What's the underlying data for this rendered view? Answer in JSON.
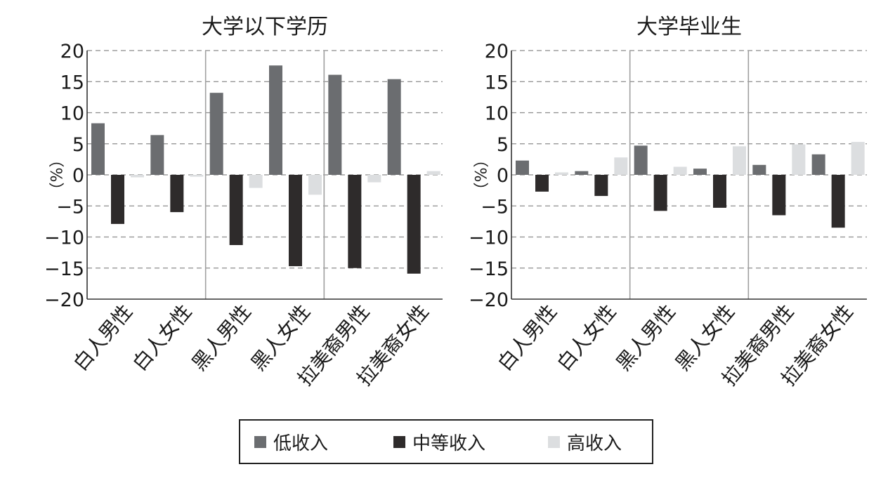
{
  "chart_data": [
    {
      "type": "bar",
      "title": "大学以下学历",
      "ylabel": "（%）",
      "ylim": [
        -20,
        20
      ],
      "yticks": [
        20,
        15,
        10,
        5,
        0,
        -5,
        -10,
        -15,
        -20
      ],
      "ytick_labels": [
        "20",
        "15",
        "10",
        "5",
        "0",
        "−5",
        "−10",
        "−15",
        "−20"
      ],
      "grid": "horizontal-dashed",
      "categories": [
        "白人男性",
        "白人女性",
        "黑人男性",
        "黑人女性",
        "拉美裔男性",
        "拉美裔女性"
      ],
      "series": [
        {
          "name": "低收入",
          "values": [
            8.3,
            6.4,
            13.2,
            17.6,
            16.1,
            15.4
          ]
        },
        {
          "name": "中等收入",
          "values": [
            -7.9,
            -6.0,
            -11.3,
            -14.7,
            -15.0,
            -15.9
          ]
        },
        {
          "name": "高收入",
          "values": [
            -0.4,
            -0.3,
            -2.1,
            -3.2,
            -1.2,
            0.6
          ]
        }
      ]
    },
    {
      "type": "bar",
      "title": "大学毕业生",
      "ylabel": "（%）",
      "ylim": [
        -20,
        20
      ],
      "yticks": [
        20,
        15,
        10,
        5,
        0,
        -5,
        -10,
        -15,
        -20
      ],
      "ytick_labels": [
        "20",
        "15",
        "10",
        "5",
        "0",
        "−5",
        "−10",
        "−15",
        "−20"
      ],
      "grid": "horizontal-dashed",
      "categories": [
        "白人男性",
        "白人女性",
        "黑人男性",
        "黑人女性",
        "拉美裔男性",
        "拉美裔女性"
      ],
      "series": [
        {
          "name": "低收入",
          "values": [
            2.3,
            0.6,
            4.7,
            1.0,
            1.6,
            3.3
          ]
        },
        {
          "name": "中等收入",
          "values": [
            -2.7,
            -3.4,
            -5.8,
            -5.3,
            -6.5,
            -8.5
          ]
        },
        {
          "name": "高收入",
          "values": [
            0.4,
            2.8,
            1.3,
            4.6,
            4.9,
            5.3
          ]
        }
      ]
    }
  ],
  "legend": {
    "placement": "bottom-center",
    "items": [
      {
        "label": "低收入",
        "color": "#6b6d70"
      },
      {
        "label": "中等收入",
        "color": "#2e2b2b"
      },
      {
        "label": "高收入",
        "color": "#dcdee0"
      }
    ]
  },
  "colors": {
    "series": [
      "#6b6d70",
      "#2e2b2b",
      "#dcdee0"
    ],
    "grid": "#8c8c8c",
    "divider": "#a0a0a0"
  }
}
